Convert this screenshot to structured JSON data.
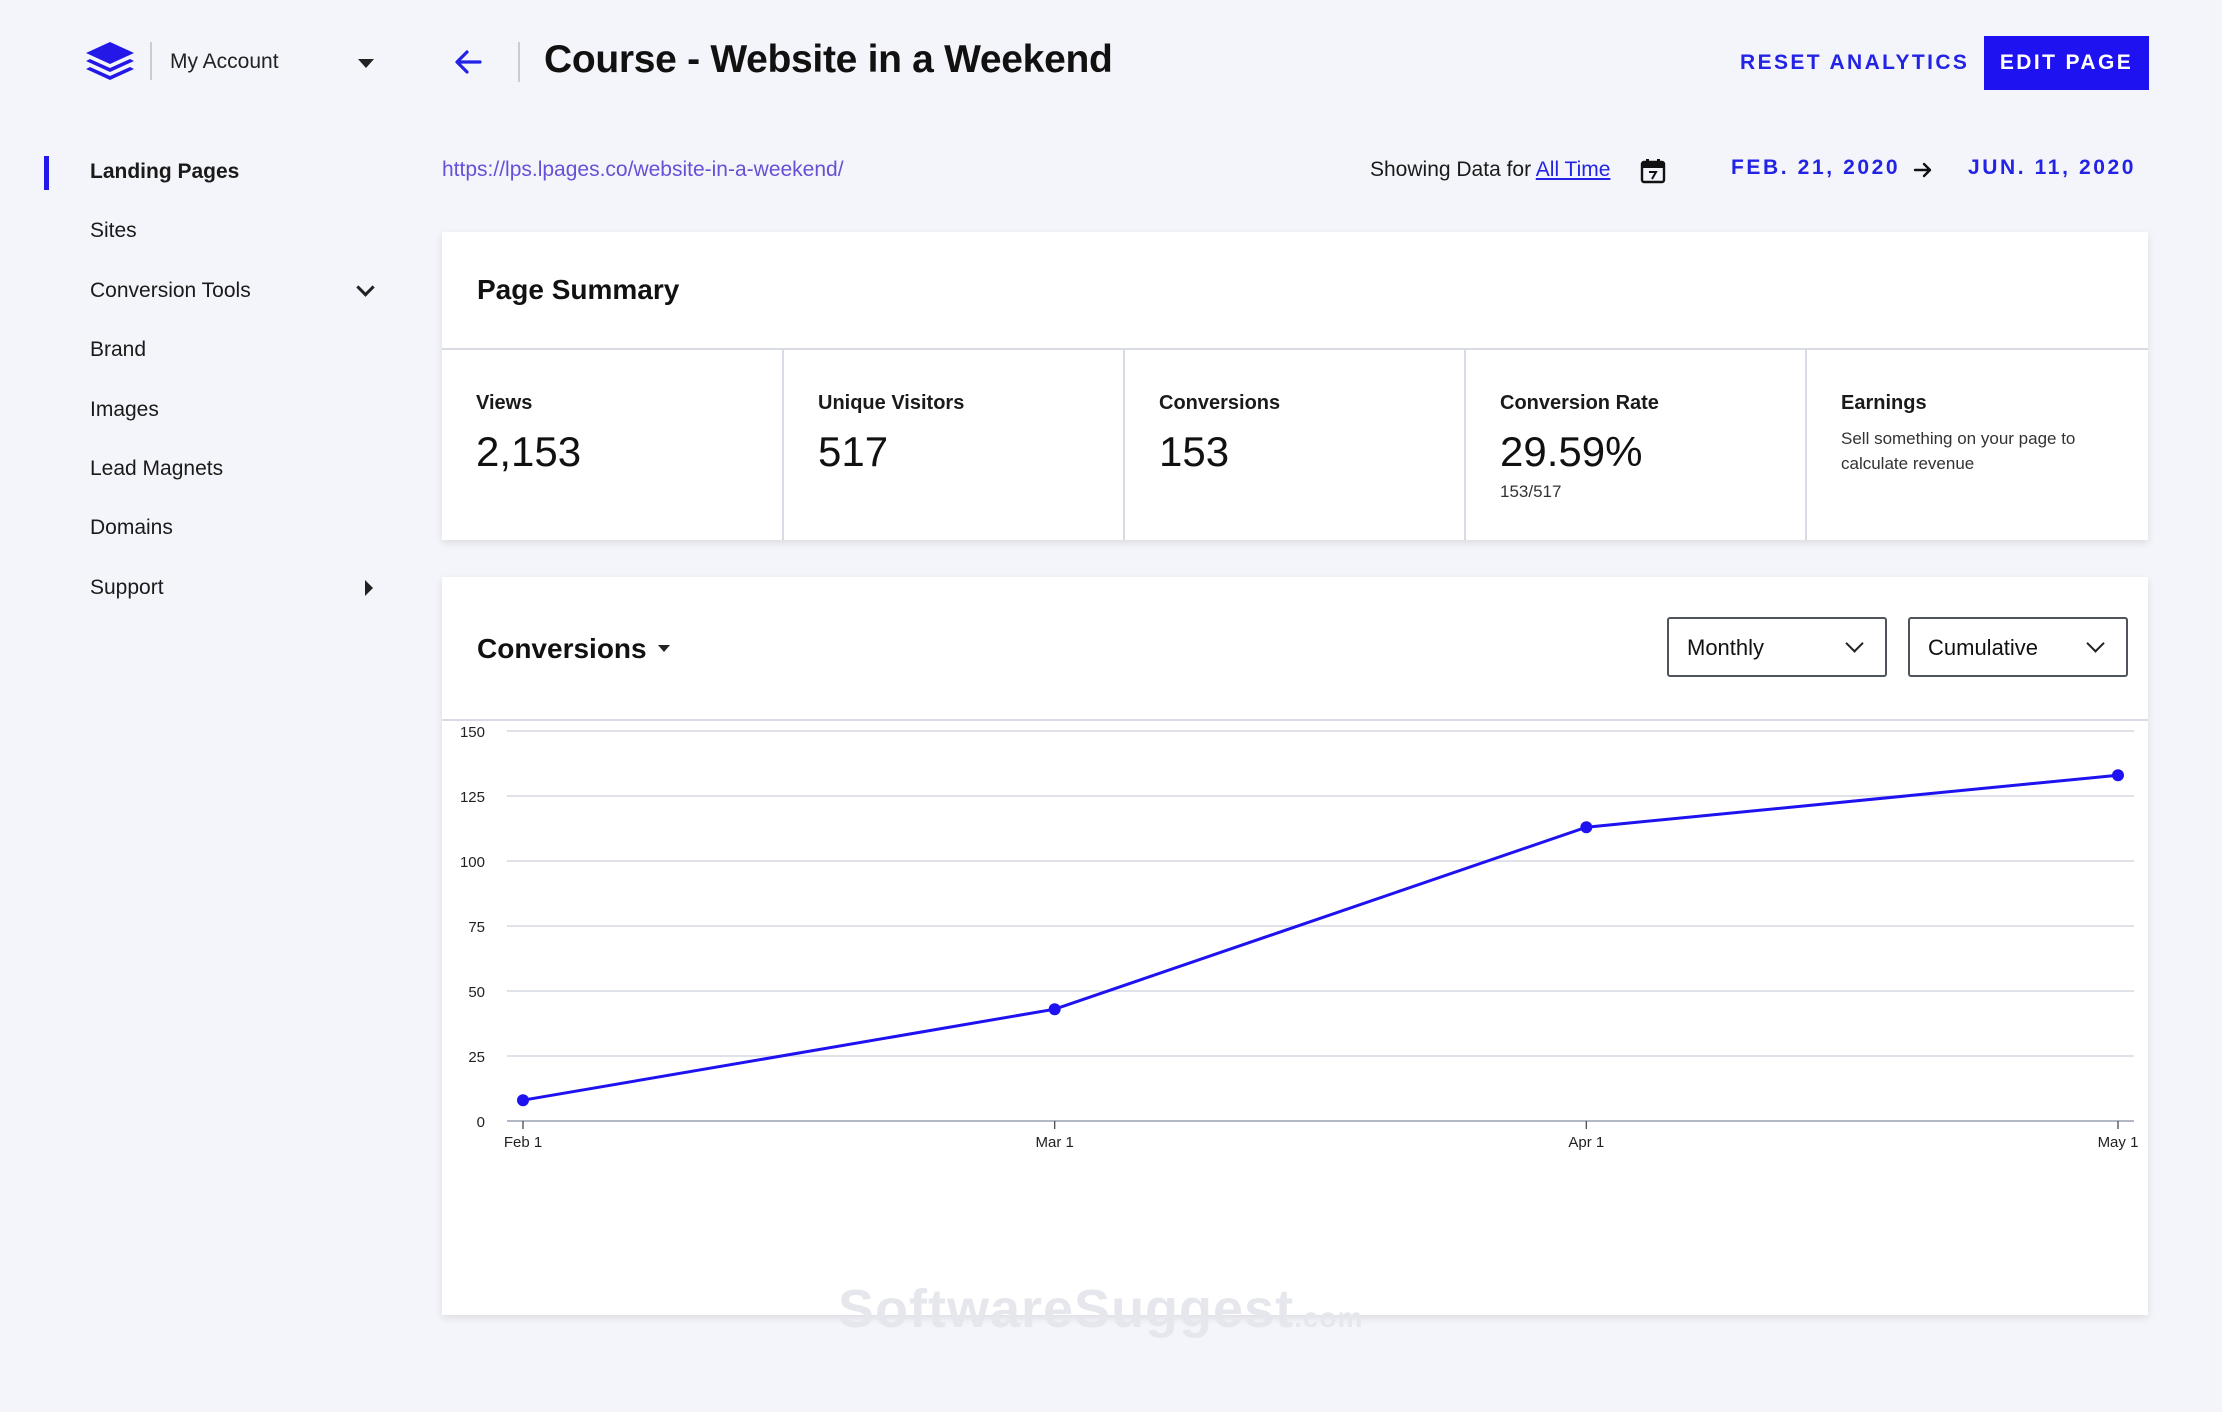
{
  "header": {
    "account_label": "My Account",
    "page_title": "Course - Website in a Weekend",
    "reset_label": "RESET ANALYTICS",
    "edit_label": "EDIT PAGE"
  },
  "sidebar": {
    "items": [
      {
        "label": "Landing Pages"
      },
      {
        "label": "Sites"
      },
      {
        "label": "Conversion Tools"
      },
      {
        "label": "Brand"
      },
      {
        "label": "Images"
      },
      {
        "label": "Lead Magnets"
      },
      {
        "label": "Domains"
      },
      {
        "label": "Support"
      }
    ]
  },
  "page_url": "https://lps.lpages.co/website-in-a-weekend/",
  "date_filter": {
    "prefix": "Showing Data for ",
    "range_link": "All Time",
    "start_date": "FEB. 21, 2020",
    "end_date": "JUN. 11, 2020"
  },
  "summary": {
    "title": "Page Summary",
    "metrics": [
      {
        "label": "Views",
        "value": "2,153"
      },
      {
        "label": "Unique Visitors",
        "value": "517"
      },
      {
        "label": "Conversions",
        "value": "153"
      },
      {
        "label": "Conversion Rate",
        "value": "29.59%",
        "sub": "153/517"
      },
      {
        "label": "Earnings",
        "note": "Sell something on your page to calculate revenue"
      }
    ]
  },
  "conversions": {
    "title": "Conversions",
    "interval_select": "Monthly",
    "mode_select": "Cumulative"
  },
  "watermark": {
    "main": "SoftwareSuggest",
    "suffix": ".com"
  },
  "colors": {
    "accent": "#1f12f0",
    "link": "#6650d6",
    "line": "#1f12f0"
  },
  "chart_data": {
    "type": "line",
    "categories": [
      "Feb 1",
      "Mar 1",
      "Apr 1",
      "May 1"
    ],
    "series": [
      {
        "values": [
          8,
          43,
          113,
          133
        ]
      }
    ],
    "ylim": [
      0,
      150
    ],
    "yticks": [
      0,
      25,
      50,
      75,
      100,
      125,
      150
    ],
    "grid": true
  }
}
